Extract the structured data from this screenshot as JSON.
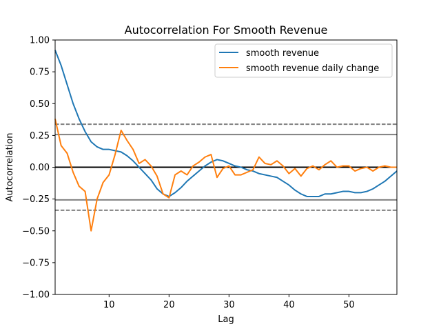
{
  "chart_data": {
    "type": "line",
    "title": "Autocorrelation For Smooth Revenue",
    "xlabel": "Lag",
    "ylabel": "Autocorrelation",
    "xlim": [
      1,
      58
    ],
    "ylim": [
      -1.0,
      1.0
    ],
    "xticks": [
      10,
      20,
      30,
      40,
      50
    ],
    "yticks": [
      -1.0,
      -0.75,
      -0.5,
      -0.25,
      0.0,
      0.25,
      0.5,
      0.75,
      1.0
    ],
    "ytick_labels": [
      "−1.00",
      "−0.75",
      "−0.50",
      "−0.25",
      "0.00",
      "0.25",
      "0.50",
      "0.75",
      "1.00"
    ],
    "grid": false,
    "legend_position": "top-right",
    "reference_lines": {
      "zero": 0.0,
      "confidence_95": 0.257,
      "confidence_99": 0.338
    },
    "x": [
      1,
      2,
      3,
      4,
      5,
      6,
      7,
      8,
      9,
      10,
      11,
      12,
      13,
      14,
      15,
      16,
      17,
      18,
      19,
      20,
      21,
      22,
      23,
      24,
      25,
      26,
      27,
      28,
      29,
      30,
      31,
      32,
      33,
      34,
      35,
      36,
      37,
      38,
      39,
      40,
      41,
      42,
      43,
      44,
      45,
      46,
      47,
      48,
      49,
      50,
      51,
      52,
      53,
      54,
      55,
      56,
      57,
      58
    ],
    "series": [
      {
        "name": "smooth revenue",
        "color": "#1f77b4",
        "values": [
          0.92,
          0.8,
          0.65,
          0.5,
          0.38,
          0.28,
          0.2,
          0.16,
          0.14,
          0.14,
          0.13,
          0.12,
          0.09,
          0.05,
          0.0,
          -0.05,
          -0.1,
          -0.17,
          -0.21,
          -0.23,
          -0.2,
          -0.16,
          -0.11,
          -0.07,
          -0.03,
          0.01,
          0.04,
          0.06,
          0.05,
          0.03,
          0.01,
          0.0,
          -0.02,
          -0.03,
          -0.05,
          -0.06,
          -0.07,
          -0.08,
          -0.11,
          -0.14,
          -0.18,
          -0.21,
          -0.23,
          -0.23,
          -0.23,
          -0.21,
          -0.21,
          -0.2,
          -0.19,
          -0.19,
          -0.2,
          -0.2,
          -0.19,
          -0.17,
          -0.14,
          -0.11,
          -0.07,
          -0.03
        ]
      },
      {
        "name": "smooth revenue daily change",
        "color": "#ff7f0e",
        "values": [
          0.38,
          0.17,
          0.11,
          -0.04,
          -0.15,
          -0.19,
          -0.5,
          -0.25,
          -0.12,
          -0.06,
          0.1,
          0.29,
          0.21,
          0.14,
          0.03,
          0.06,
          0.01,
          -0.07,
          -0.21,
          -0.24,
          -0.06,
          -0.03,
          -0.06,
          0.01,
          0.04,
          0.08,
          0.1,
          -0.08,
          -0.01,
          0.01,
          -0.06,
          -0.06,
          -0.04,
          -0.02,
          0.08,
          0.03,
          0.02,
          0.05,
          0.01,
          -0.05,
          -0.01,
          -0.07,
          -0.01,
          0.01,
          -0.02,
          0.02,
          0.05,
          0.0,
          0.01,
          0.01,
          -0.03,
          -0.01,
          0.0,
          -0.03,
          0.0,
          0.01,
          0.0,
          0.0
        ]
      }
    ]
  }
}
